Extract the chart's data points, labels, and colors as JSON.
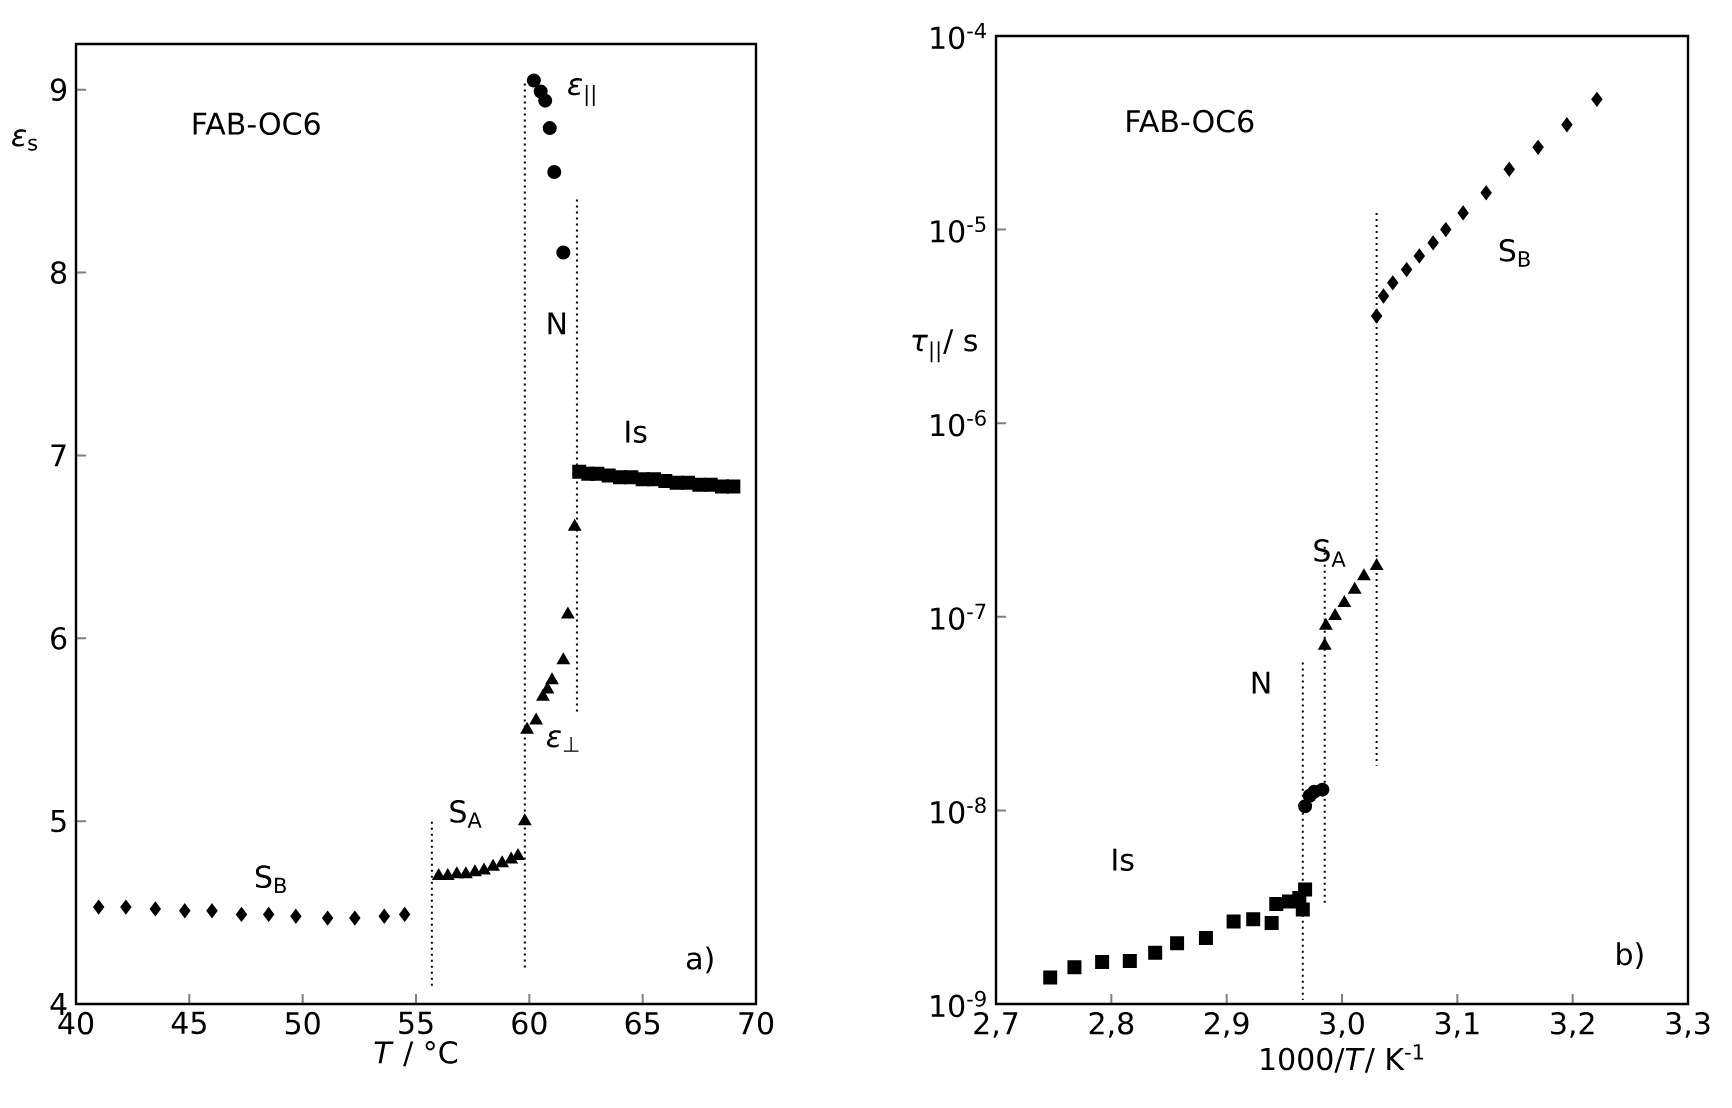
{
  "chart_data": [
    {
      "type": "scatter",
      "xlabel": "*T* / °C",
      "ylabel": "*ε*$_{s}$",
      "xlim": [
        40,
        70
      ],
      "ylim": [
        4,
        9.25
      ],
      "xticks": [
        40,
        45,
        50,
        55,
        60,
        65,
        70
      ],
      "yticks": [
        4,
        5,
        6,
        7,
        8,
        9
      ],
      "series": [
        {
          "type": "scatter",
          "marker": "diamond",
          "color": "#000000",
          "x": [
            41.0,
            42.2,
            43.5,
            44.8,
            46.0,
            47.3,
            48.5,
            49.7,
            51.1,
            52.3,
            53.6,
            54.5
          ],
          "values": [
            4.53,
            4.53,
            4.52,
            4.51,
            4.51,
            4.49,
            4.49,
            4.48,
            4.47,
            4.47,
            4.48,
            4.49
          ]
        },
        {
          "type": "scatter",
          "marker": "triangle",
          "color": "#000000",
          "x": [
            56.0,
            56.4,
            56.8,
            57.2,
            57.6,
            58.0,
            58.4,
            58.8,
            59.2,
            59.5,
            59.8
          ],
          "values": [
            4.7,
            4.7,
            4.71,
            4.71,
            4.72,
            4.73,
            4.75,
            4.77,
            4.79,
            4.81,
            5.0
          ]
        },
        {
          "type": "scatter",
          "marker": "triangle",
          "color": "#000000",
          "x": [
            59.9,
            60.3,
            60.6,
            60.8,
            61.0,
            61.5,
            61.7,
            62.0
          ],
          "values": [
            5.5,
            5.55,
            5.68,
            5.72,
            5.77,
            5.88,
            6.13,
            6.61
          ]
        },
        {
          "type": "scatter",
          "marker": "circle",
          "color": "#000000",
          "x": [
            60.2,
            60.5,
            60.7,
            60.9,
            61.1,
            61.5
          ],
          "values": [
            9.05,
            8.99,
            8.94,
            8.79,
            8.55,
            8.11
          ]
        },
        {
          "type": "scatter",
          "marker": "square",
          "color": "#000000",
          "x": [
            62.2,
            62.6,
            63.0,
            63.5,
            64.0,
            64.5,
            65.0,
            65.5,
            66.0,
            66.5,
            67.0,
            67.5,
            68.0,
            68.5,
            69.0
          ],
          "values": [
            6.91,
            6.9,
            6.9,
            6.89,
            6.88,
            6.88,
            6.87,
            6.87,
            6.86,
            6.85,
            6.85,
            6.84,
            6.84,
            6.83,
            6.83
          ]
        },
        {
          "type": "line",
          "line_style": "dotted",
          "marker": "none",
          "color": "#000000",
          "x": [
            55.7,
            55.7
          ],
          "values": [
            4.1,
            5.0
          ]
        },
        {
          "type": "line",
          "line_style": "dotted",
          "marker": "none",
          "color": "#000000",
          "x": [
            59.8,
            59.8
          ],
          "values": [
            4.2,
            9.05
          ]
        },
        {
          "type": "line",
          "line_style": "dotted",
          "marker": "none",
          "color": "#000000",
          "x": [
            62.1,
            62.1
          ],
          "values": [
            5.6,
            8.4
          ]
        }
      ],
      "annotations": [
        "FAB-OC6",
        "a)",
        "S$_{B}$",
        "S$_{A}$",
        "N",
        "Is",
        "*ε*$_{||}$",
        "*ε*$_{⊥}$"
      ]
    },
    {
      "type": "scatter",
      "xlabel": "1000/*T*/ K$^{-1}$",
      "ylabel": "*τ*$_{||}$/ s",
      "log": true,
      "xlim": [
        2.7,
        3.3
      ],
      "ylim": [
        1e-09,
        0.0001
      ],
      "xticks": [
        {
          "value": 2.7,
          "label": "2,7"
        },
        {
          "value": 2.8,
          "label": "2,8"
        },
        {
          "value": 2.9,
          "label": "2,9"
        },
        {
          "value": 3.0,
          "label": "3,0"
        },
        {
          "value": 3.1,
          "label": "3,1"
        },
        {
          "value": 3.2,
          "label": "3,2"
        },
        {
          "value": 3.3,
          "label": "3,3"
        }
      ],
      "yticks": [
        {
          "value": 1e-09,
          "label": "10$^{-9}$"
        },
        {
          "value": 1e-08,
          "label": "10$^{-8}$"
        },
        {
          "value": 1e-07,
          "label": "10$^{-7}$"
        },
        {
          "value": 1e-06,
          "label": "10$^{-6}$"
        },
        {
          "value": 1e-05,
          "label": "10$^{-5}$"
        },
        {
          "value": 0.0001,
          "label": "10$^{-4}$"
        }
      ],
      "series": [
        {
          "type": "scatter",
          "marker": "square",
          "color": "#000000",
          "x": [
            2.747,
            2.768,
            2.792,
            2.816,
            2.838,
            2.857,
            2.882,
            2.906,
            2.923,
            2.939,
            2.943,
            2.954,
            2.963,
            2.968,
            2.966
          ],
          "values": [
            1.37e-09,
            1.55e-09,
            1.65e-09,
            1.67e-09,
            1.84e-09,
            2.06e-09,
            2.19e-09,
            2.67e-09,
            2.74e-09,
            2.62e-09,
            3.29e-09,
            3.39e-09,
            3.53e-09,
            3.91e-09,
            3.08e-09
          ]
        },
        {
          "type": "scatter",
          "marker": "circle",
          "color": "#000000",
          "x": [
            2.968,
            2.972,
            2.976,
            2.98,
            2.983
          ],
          "values": [
            1.05e-08,
            1.19e-08,
            1.25e-08,
            null,
            1.28e-08
          ]
        },
        {
          "type": "scatter",
          "marker": "triangle",
          "color": "#000000",
          "x": [
            2.985,
            2.986,
            2.994,
            3.002,
            3.011,
            3.019,
            3.03
          ],
          "values": [
            7.1e-08,
            9e-08,
            1.01e-07,
            1.18e-07,
            1.38e-07,
            1.62e-07,
            1.83e-07
          ]
        },
        {
          "type": "scatter",
          "marker": "diamond",
          "color": "#000000",
          "x": [
            3.03,
            3.036,
            3.044,
            3.056,
            3.067,
            3.079,
            3.09,
            3.105,
            3.125,
            3.145,
            3.17,
            3.195,
            3.221
          ],
          "values": [
            3.58e-06,
            4.54e-06,
            5.31e-06,
            6.22e-06,
            7.31e-06,
            8.55e-06,
            1e-05,
            1.22e-05,
            1.55e-05,
            2.05e-05,
            2.66e-05,
            3.48e-05,
            4.71e-05
          ]
        },
        {
          "type": "line",
          "line_style": "dotted",
          "marker": "none",
          "color": "#000000",
          "x": [
            2.966,
            2.966
          ],
          "values": [
            5.8e-08,
            1.05e-09
          ]
        },
        {
          "type": "line",
          "line_style": "dotted",
          "marker": "none",
          "color": "#000000",
          "x": [
            2.985,
            2.985
          ],
          "values": [
            2.3e-07,
            3.3e-09
          ]
        },
        {
          "type": "line",
          "line_style": "dotted",
          "marker": "none",
          "color": "#000000",
          "x": [
            3.03,
            3.03
          ],
          "values": [
            1.22e-05,
            1.7e-08
          ]
        }
      ],
      "annotations": [
        "FAB-OC6",
        "b)",
        "S$_{B}$",
        "S$_{A}$",
        "N",
        "Is"
      ]
    }
  ]
}
